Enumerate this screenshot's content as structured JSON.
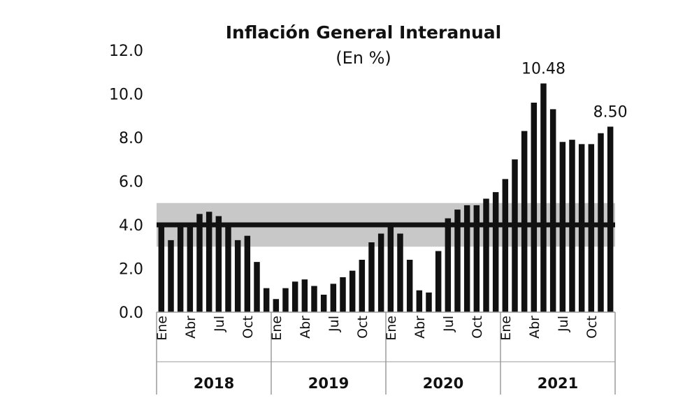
{
  "chart_data": {
    "type": "bar",
    "title": "Inflación General Interanual",
    "subtitle": "(En %)",
    "ylim": [
      0,
      12
    ],
    "yticks": [
      "0.0",
      "2.0",
      "4.0",
      "6.0",
      "8.0",
      "10.0",
      "12.0"
    ],
    "grid": false,
    "values": [
      4.0,
      3.3,
      3.9,
      4.0,
      4.5,
      4.6,
      4.4,
      3.9,
      3.3,
      3.5,
      2.3,
      1.1,
      0.6,
      1.1,
      1.4,
      1.5,
      1.2,
      0.8,
      1.3,
      1.6,
      1.9,
      2.4,
      3.2,
      3.6,
      4.1,
      3.6,
      2.4,
      1.0,
      0.9,
      2.8,
      4.3,
      4.7,
      4.9,
      4.9,
      5.2,
      5.5,
      6.1,
      7.0,
      8.3,
      9.6,
      10.48,
      9.3,
      7.8,
      7.9,
      7.7,
      7.7,
      8.2,
      8.5
    ],
    "month_tick_labels": [
      {
        "index": 0,
        "label": "Ene"
      },
      {
        "index": 3,
        "label": "Abr"
      },
      {
        "index": 6,
        "label": "Jul"
      },
      {
        "index": 9,
        "label": "Oct"
      },
      {
        "index": 12,
        "label": "Ene"
      },
      {
        "index": 15,
        "label": "Abr"
      },
      {
        "index": 18,
        "label": "Jul"
      },
      {
        "index": 21,
        "label": "Oct"
      },
      {
        "index": 24,
        "label": "Ene"
      },
      {
        "index": 27,
        "label": "Abr"
      },
      {
        "index": 30,
        "label": "Jul"
      },
      {
        "index": 33,
        "label": "Oct"
      },
      {
        "index": 36,
        "label": "Ene"
      },
      {
        "index": 39,
        "label": "Abr"
      },
      {
        "index": 42,
        "label": "Jul"
      },
      {
        "index": 45,
        "label": "Oct"
      }
    ],
    "years": [
      "2018",
      "2019",
      "2020",
      "2021"
    ],
    "target_line": 4.0,
    "target_band": [
      3.0,
      5.0
    ],
    "data_labels": [
      {
        "index": 40,
        "text": "10.48"
      },
      {
        "index": 47,
        "text": "8.50"
      }
    ],
    "colors": {
      "bar": "#111111",
      "band": "#c8c8c8",
      "line": "#111111",
      "axis": "#9a9a9a"
    }
  }
}
